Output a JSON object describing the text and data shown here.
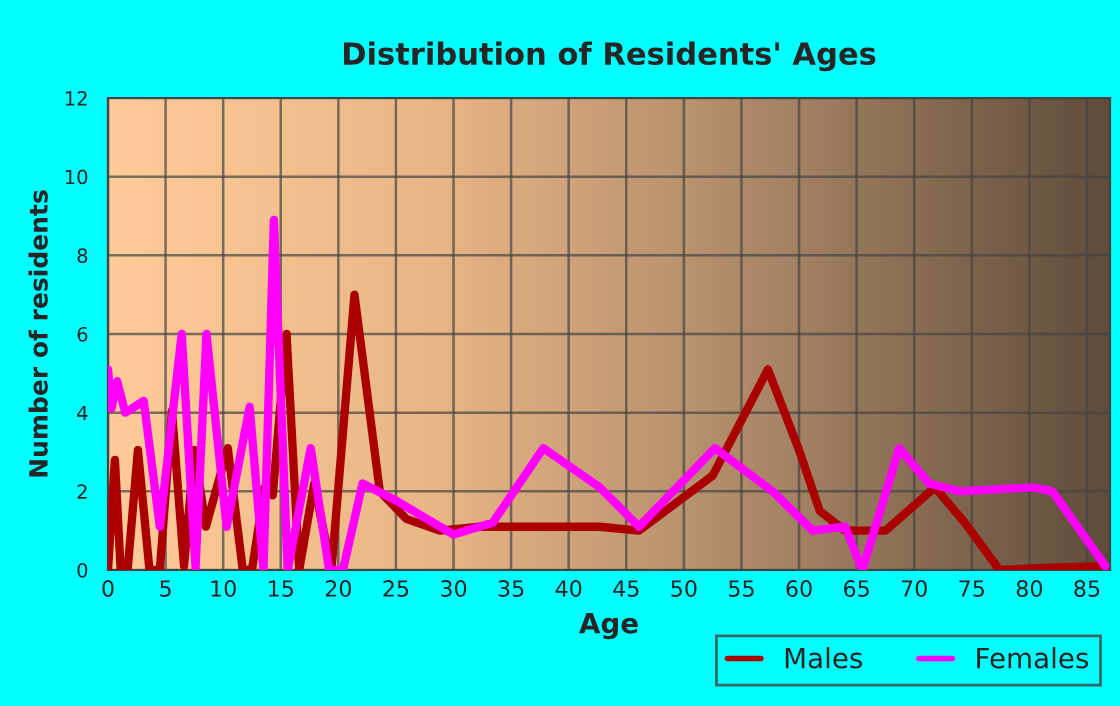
{
  "chart_data": {
    "type": "line",
    "title": "Distribution of Residents' Ages",
    "xlabel": "Age",
    "ylabel": "Number of residents",
    "xlim": [
      0,
      87
    ],
    "xticks": [
      0,
      5,
      10,
      15,
      20,
      25,
      30,
      35,
      40,
      45,
      50,
      55,
      60,
      65,
      70,
      75,
      80,
      85
    ],
    "ylim": [
      0,
      12
    ],
    "yticks": [
      0,
      2,
      4,
      6,
      8,
      10,
      12
    ],
    "grid": true,
    "legend": "bottom right",
    "marker": "none",
    "line_style": "solid",
    "series": [
      {
        "name": "Males",
        "color": "#aa0000",
        "x": [
          0,
          0.6,
          1.1,
          1.7,
          2.6,
          3.6,
          4.5,
          5.55,
          6.6,
          7.5,
          8.5,
          10.4,
          11.7,
          12.5,
          13.6,
          14.3,
          15.5,
          16.6,
          17.9,
          19.4,
          21.4,
          23.6,
          25.9,
          28.8,
          32.3,
          42.7,
          46.1,
          52.5,
          57.3,
          60,
          61.8,
          64,
          67.5,
          71.8,
          74.4,
          77.4,
          81.4,
          86.6
        ],
        "values": [
          0,
          2.8,
          0,
          0,
          3.05,
          0,
          0,
          4.05,
          0.1,
          3.05,
          1.1,
          3.1,
          0,
          0,
          2.1,
          1.9,
          6.0,
          0,
          2.2,
          0,
          7.0,
          2.0,
          1.3,
          1.0,
          1.1,
          1.1,
          1.0,
          2.4,
          5.1,
          3.05,
          1.5,
          1.0,
          1.0,
          2.1,
          1.2,
          0,
          0.05,
          0.1
        ]
      },
      {
        "name": "Females",
        "color": "#ff00ff",
        "x": [
          0,
          0.3,
          0.8,
          1.5,
          3.1,
          4.5,
          6.4,
          7.6,
          8.55,
          10.3,
          12.3,
          13.5,
          14.4,
          15.6,
          17.6,
          19.2,
          20.4,
          22.1,
          24.8,
          30,
          33.4,
          37.8,
          42.7,
          46.1,
          52.7,
          57.7,
          61.2,
          64,
          65.5,
          68.7,
          71.3,
          73.9,
          80.3,
          82,
          86.6
        ],
        "values": [
          5.1,
          4.1,
          4.8,
          4.0,
          4.3,
          1.1,
          6.0,
          0.05,
          6.0,
          1.1,
          4.15,
          0,
          8.9,
          0,
          3.1,
          0,
          0,
          2.2,
          1.8,
          0.9,
          1.2,
          3.1,
          2.1,
          1.1,
          3.1,
          2.0,
          1.0,
          1.1,
          0,
          3.1,
          2.2,
          2.0,
          2.1,
          2.0,
          0.1
        ]
      }
    ]
  }
}
